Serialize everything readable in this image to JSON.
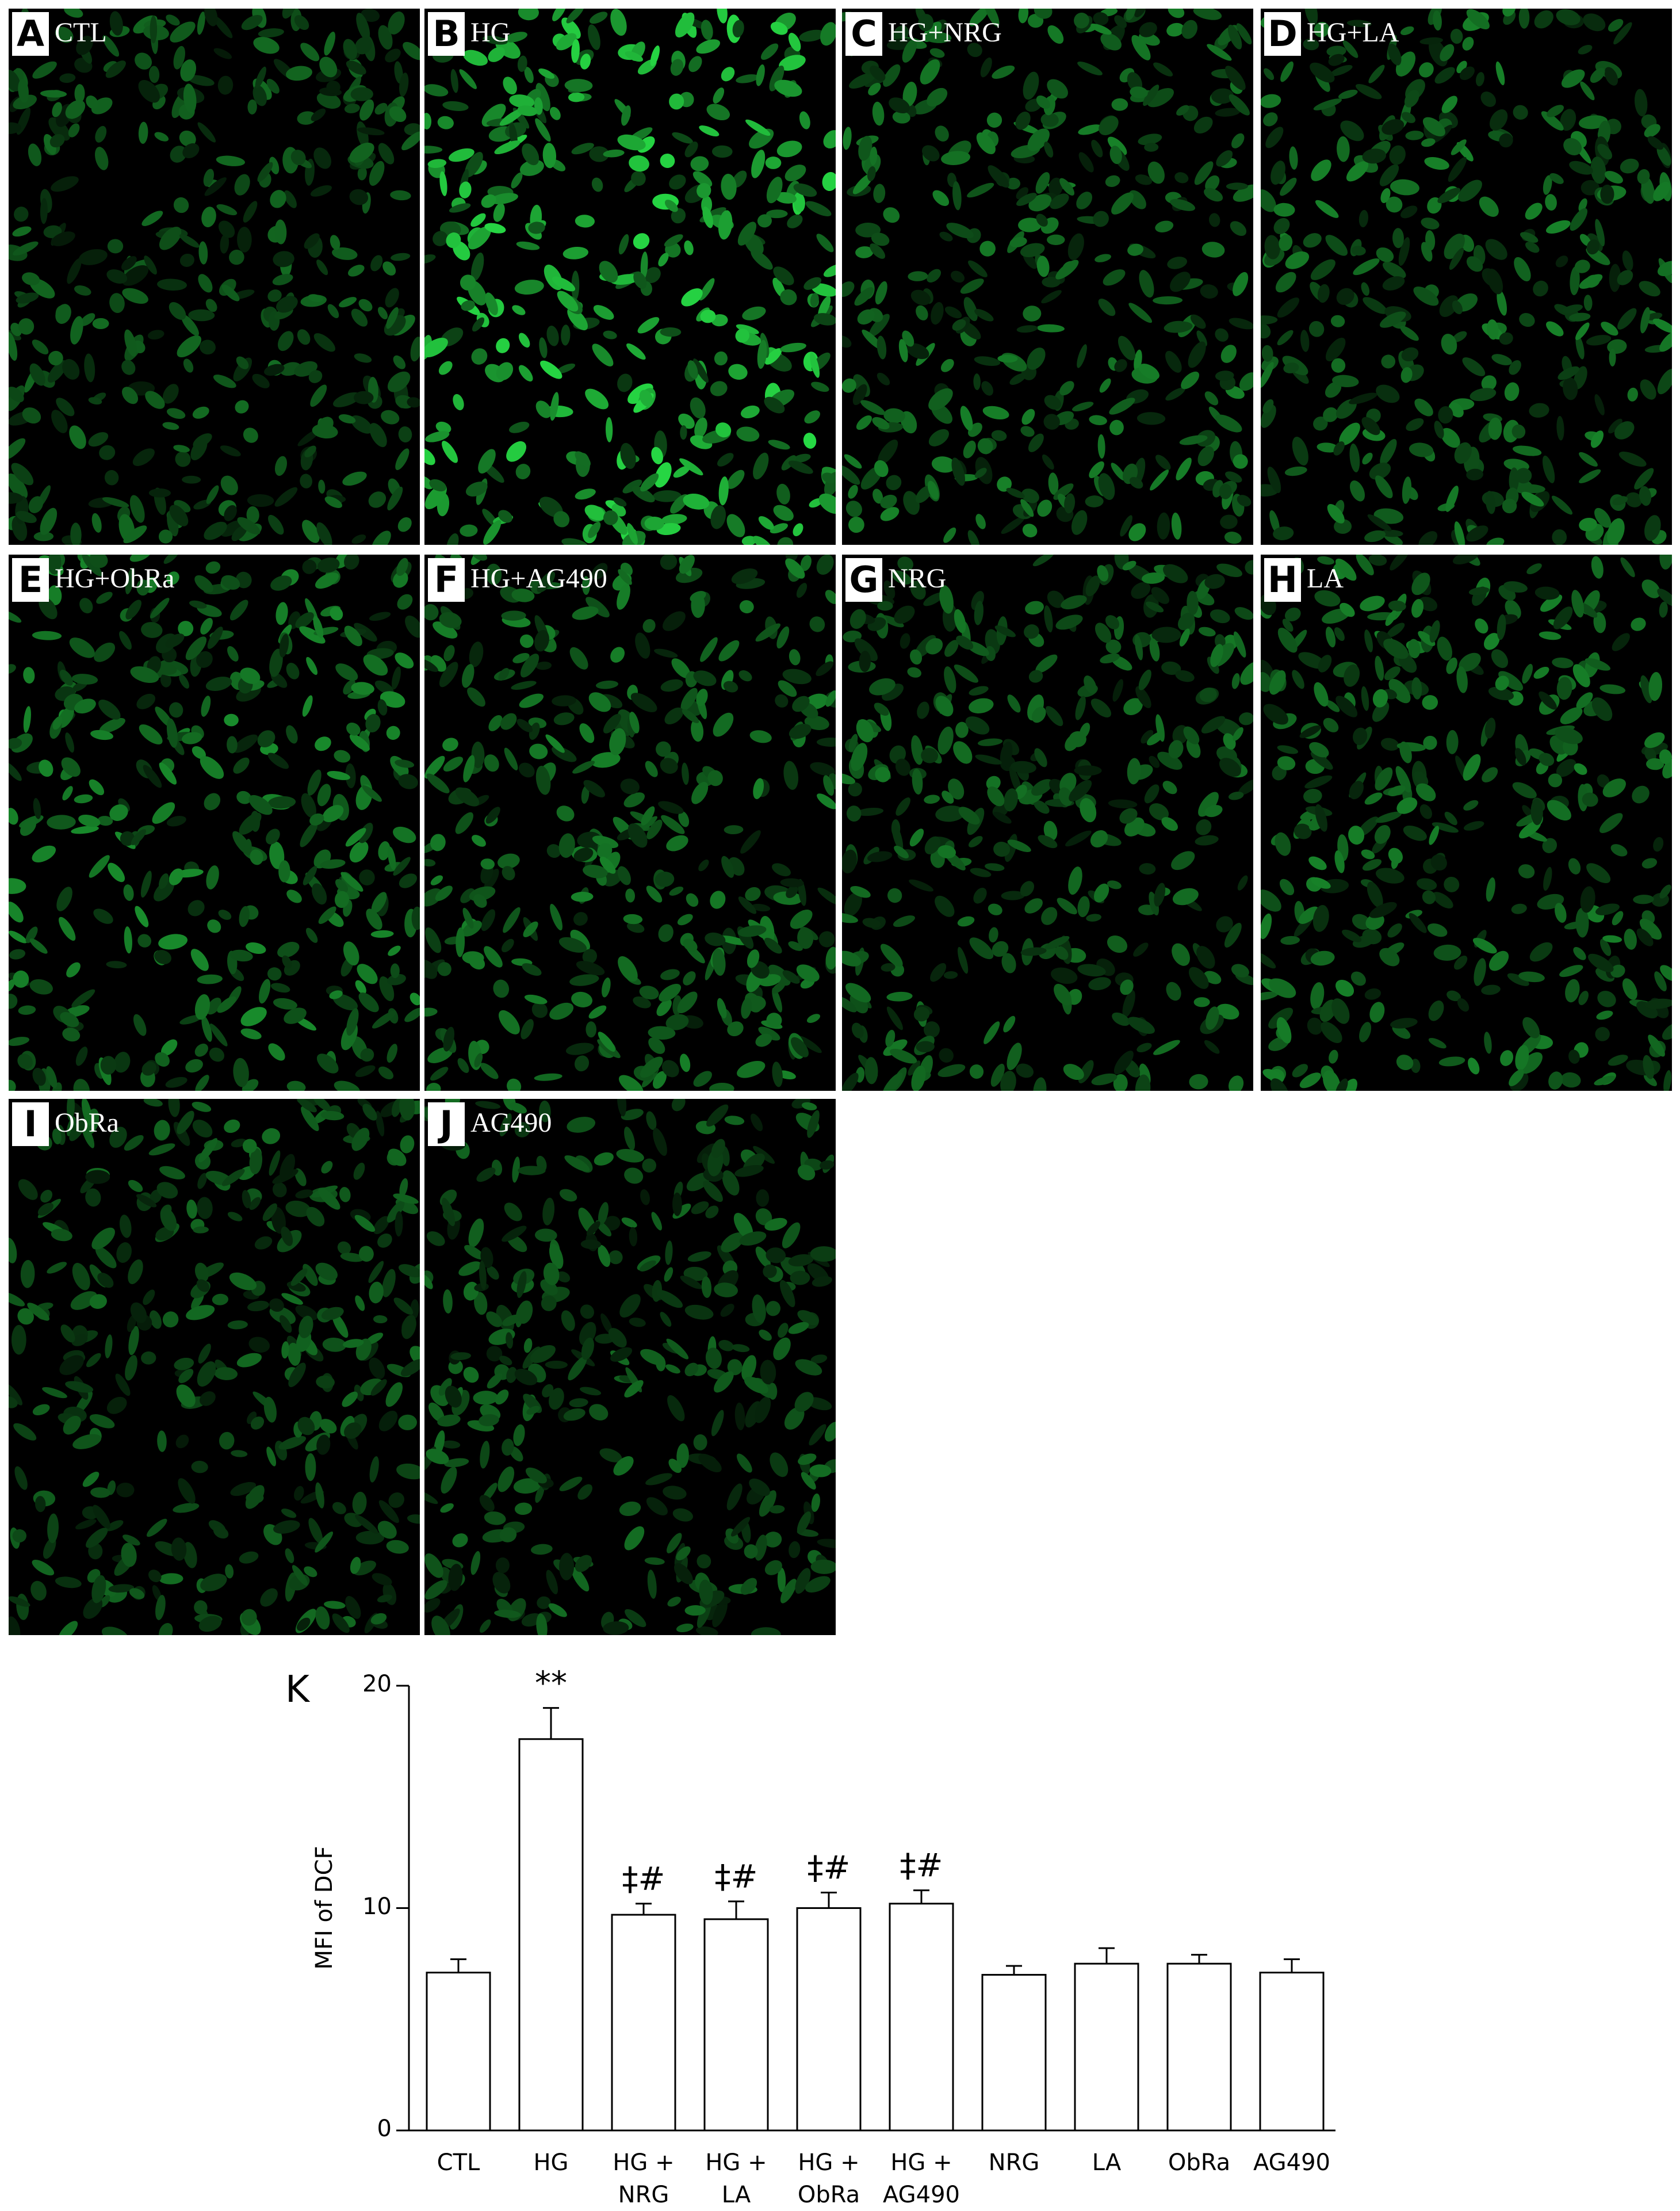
{
  "panels": [
    {
      "letter": "A",
      "label": "CTL"
    },
    {
      "letter": "B",
      "label": "HG"
    },
    {
      "letter": "C",
      "label": "HG+NRG"
    },
    {
      "letter": "D",
      "label": "HG+LA"
    },
    {
      "letter": "E",
      "label": "HG+ObRa"
    },
    {
      "letter": "F",
      "label": "HG+AG490"
    },
    {
      "letter": "G",
      "label": "NRG"
    },
    {
      "letter": "H",
      "label": "LA"
    },
    {
      "letter": "I",
      "label": "ObRa"
    },
    {
      "letter": "J",
      "label": "AG490"
    }
  ],
  "chart_data": {
    "type": "bar",
    "panel_letter": "K",
    "y_label": "MFI of DCF",
    "categories": [
      "CTL",
      "HG",
      "HG +\nNRG",
      "HG +\nLA",
      "HG +\nObRa",
      "HG +\nAG490",
      "NRG",
      "LA",
      "ObRa",
      "AG490"
    ],
    "values": [
      7.1,
      17.6,
      9.7,
      9.5,
      10.0,
      10.2,
      7.0,
      7.5,
      7.5,
      7.1
    ],
    "errors": [
      0.6,
      1.4,
      0.5,
      0.8,
      0.7,
      0.6,
      0.4,
      0.7,
      0.4,
      0.6
    ],
    "annotations": [
      null,
      "**",
      "‡#",
      "‡#",
      "‡#",
      "‡#",
      null,
      null,
      null,
      null
    ],
    "color": "#ffffff",
    "edgecolor": "#000000",
    "ylim": [
      0,
      20
    ],
    "yticks": [
      0,
      10,
      20
    ]
  }
}
